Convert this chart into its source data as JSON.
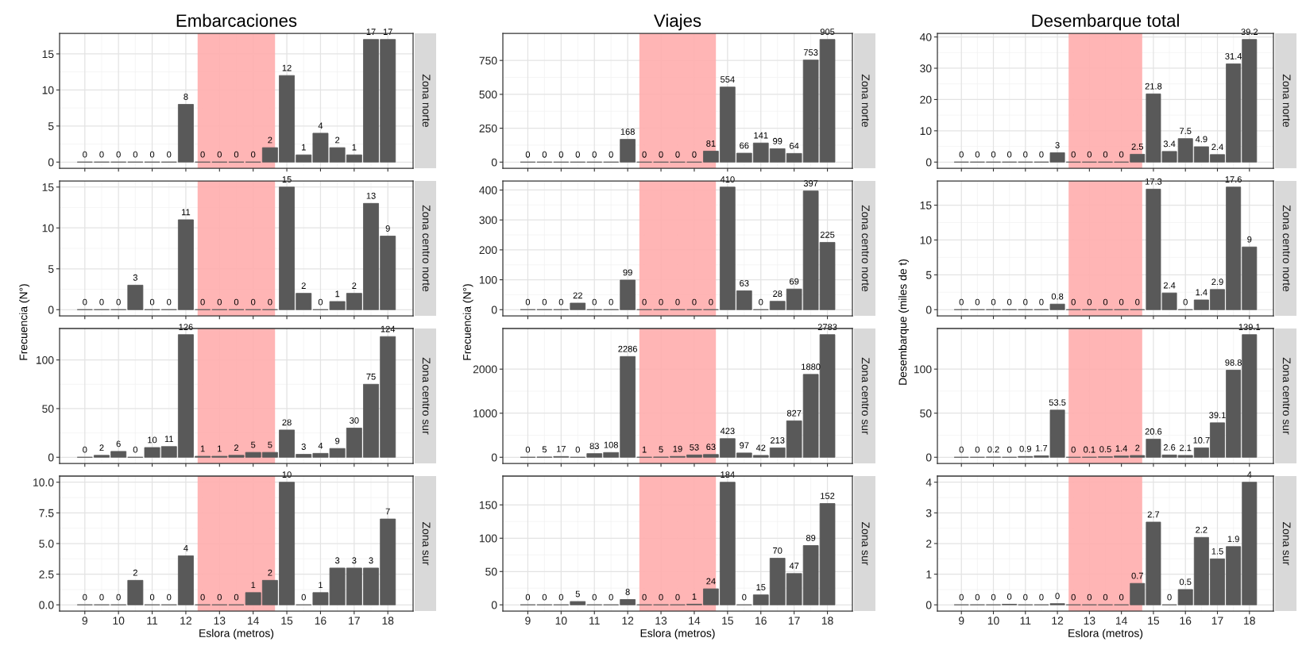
{
  "chart_data": [
    {
      "type": "bar",
      "title": "Embarcaciones",
      "y2label": "Zona norte",
      "x": [
        9,
        9.5,
        10,
        10.5,
        11,
        11.5,
        12,
        12.5,
        13,
        13.5,
        14,
        14.5,
        15,
        15.5,
        16,
        16.5,
        17,
        17.5,
        18
      ],
      "values": [
        0,
        0,
        0,
        0,
        0,
        0,
        8,
        0,
        0,
        0,
        0,
        2,
        12,
        1,
        4,
        2,
        1,
        17,
        17
      ],
      "color": "#595959",
      "data_labels": true,
      "xlim": [
        8.25,
        18.75
      ],
      "xticks": [
        9,
        10,
        11,
        12,
        13,
        14,
        15,
        16,
        17,
        18
      ],
      "ylim": [
        -0.85,
        17.85
      ],
      "yticks": [
        0,
        5,
        10,
        15
      ],
      "bands": [
        {
          "axis": "x",
          "from": 12.35,
          "to": 14.65,
          "color": "#ffadad"
        }
      ],
      "grid": true,
      "tick_labels": "y"
    },
    {
      "type": "bar",
      "y2label": "Zona centro norte",
      "ylabel": "Frecuencia (N°)",
      "x": [
        9,
        9.5,
        10,
        10.5,
        11,
        11.5,
        12,
        12.5,
        13,
        13.5,
        14,
        14.5,
        15,
        15.5,
        16,
        16.5,
        17,
        17.5,
        18
      ],
      "values": [
        0,
        0,
        0,
        3,
        0,
        0,
        11,
        0,
        0,
        0,
        0,
        0,
        15,
        2,
        0,
        1,
        2,
        13,
        9
      ],
      "color": "#595959",
      "data_labels": true,
      "xlim": [
        8.25,
        18.75
      ],
      "xticks": [
        9,
        10,
        11,
        12,
        13,
        14,
        15,
        16,
        17,
        18
      ],
      "ylim": [
        -0.75,
        15.75
      ],
      "yticks": [
        0,
        5,
        10,
        15
      ],
      "bands": [
        {
          "axis": "x",
          "from": 12.35,
          "to": 14.65,
          "color": "#ffadad"
        }
      ],
      "grid": true,
      "tick_labels": "y"
    },
    {
      "type": "bar",
      "y2label": "Zona centro sur",
      "x": [
        9,
        9.5,
        10,
        10.5,
        11,
        11.5,
        12,
        12.5,
        13,
        13.5,
        14,
        14.5,
        15,
        15.5,
        16,
        16.5,
        17,
        17.5,
        18
      ],
      "values": [
        0,
        2,
        6,
        0,
        10,
        11,
        126,
        1,
        1,
        2,
        5,
        5,
        28,
        3,
        4,
        9,
        30,
        75,
        124
      ],
      "color": "#595959",
      "data_labels": true,
      "xlim": [
        8.25,
        18.75
      ],
      "xticks": [
        9,
        10,
        11,
        12,
        13,
        14,
        15,
        16,
        17,
        18
      ],
      "ylim": [
        -6.3,
        132.3
      ],
      "yticks": [
        0,
        50,
        100
      ],
      "bands": [
        {
          "axis": "x",
          "from": 12.35,
          "to": 14.65,
          "color": "#ffadad"
        }
      ],
      "grid": true,
      "tick_labels": "y"
    },
    {
      "type": "bar",
      "y2label": "Zona sur",
      "xlabel": "Eslora (metros)",
      "x": [
        9,
        9.5,
        10,
        10.5,
        11,
        11.5,
        12,
        12.5,
        13,
        13.5,
        14,
        14.5,
        15,
        15.5,
        16,
        16.5,
        17,
        17.5,
        18
      ],
      "values": [
        0,
        0,
        0,
        2,
        0,
        0,
        4,
        0,
        0,
        0,
        1,
        2,
        10,
        0,
        1,
        3,
        3,
        3,
        7
      ],
      "color": "#595959",
      "data_labels": true,
      "xlim": [
        8.25,
        18.75
      ],
      "xticks": [
        9,
        10,
        11,
        12,
        13,
        14,
        15,
        16,
        17,
        18
      ],
      "ylim": [
        -0.5,
        10.5
      ],
      "yticks": [
        {
          "value": 0,
          "label": "0.0"
        },
        {
          "value": 2.5,
          "label": "2.5"
        },
        {
          "value": 5,
          "label": "5.0"
        },
        {
          "value": 7.5,
          "label": "7.5"
        },
        {
          "value": 10,
          "label": "10.0"
        }
      ],
      "bands": [
        {
          "axis": "x",
          "from": 12.35,
          "to": 14.65,
          "color": "#ffadad"
        }
      ],
      "grid": true
    },
    {
      "type": "bar",
      "title": "Viajes",
      "y2label": "Zona norte",
      "x": [
        9,
        9.5,
        10,
        10.5,
        11,
        11.5,
        12,
        12.5,
        13,
        13.5,
        14,
        14.5,
        15,
        15.5,
        16,
        16.5,
        17,
        17.5,
        18
      ],
      "values": [
        0,
        0,
        0,
        0,
        0,
        0,
        168,
        0,
        0,
        0,
        0,
        81,
        554,
        66,
        141,
        99,
        64,
        753,
        905
      ],
      "color": "#595959",
      "data_labels": true,
      "xlim": [
        8.25,
        18.75
      ],
      "xticks": [
        9,
        10,
        11,
        12,
        13,
        14,
        15,
        16,
        17,
        18
      ],
      "ylim": [
        -45,
        950
      ],
      "yticks": [
        0,
        250,
        500,
        750
      ],
      "bands": [
        {
          "axis": "x",
          "from": 12.35,
          "to": 14.65,
          "color": "#ffadad"
        }
      ],
      "grid": true,
      "tick_labels": "y"
    },
    {
      "type": "bar",
      "y2label": "Zona centro norte",
      "ylabel": "Frecuencia (N°)",
      "x": [
        9,
        9.5,
        10,
        10.5,
        11,
        11.5,
        12,
        12.5,
        13,
        13.5,
        14,
        14.5,
        15,
        15.5,
        16,
        16.5,
        17,
        17.5,
        18
      ],
      "values": [
        0,
        0,
        0,
        22,
        0,
        0,
        99,
        0,
        0,
        0,
        0,
        0,
        410,
        63,
        0,
        28,
        69,
        397,
        225
      ],
      "color": "#595959",
      "data_labels": true,
      "xlim": [
        8.25,
        18.75
      ],
      "xticks": [
        9,
        10,
        11,
        12,
        13,
        14,
        15,
        16,
        17,
        18
      ],
      "ylim": [
        -20.5,
        430.5
      ],
      "yticks": [
        0,
        100,
        200,
        300,
        400
      ],
      "bands": [
        {
          "axis": "x",
          "from": 12.35,
          "to": 14.65,
          "color": "#ffadad"
        }
      ],
      "grid": true,
      "tick_labels": "y"
    },
    {
      "type": "bar",
      "y2label": "Zona centro sur",
      "x": [
        9,
        9.5,
        10,
        10.5,
        11,
        11.5,
        12,
        12.5,
        13,
        13.5,
        14,
        14.5,
        15,
        15.5,
        16,
        16.5,
        17,
        17.5,
        18
      ],
      "values": [
        0,
        5,
        17,
        0,
        83,
        108,
        2286,
        1,
        5,
        19,
        53,
        63,
        423,
        97,
        42,
        213,
        827,
        1880,
        2783
      ],
      "color": "#595959",
      "data_labels": true,
      "xlim": [
        8.25,
        18.75
      ],
      "xticks": [
        9,
        10,
        11,
        12,
        13,
        14,
        15,
        16,
        17,
        18
      ],
      "ylim": [
        -139,
        2922
      ],
      "yticks": [
        0,
        1000,
        2000
      ],
      "bands": [
        {
          "axis": "x",
          "from": 12.35,
          "to": 14.65,
          "color": "#ffadad"
        }
      ],
      "grid": true,
      "tick_labels": "y"
    },
    {
      "type": "bar",
      "y2label": "Zona sur",
      "xlabel": "Eslora (metros)",
      "x": [
        9,
        9.5,
        10,
        10.5,
        11,
        11.5,
        12,
        12.5,
        13,
        13.5,
        14,
        14.5,
        15,
        15.5,
        16,
        16.5,
        17,
        17.5,
        18
      ],
      "values": [
        0,
        0,
        0,
        5,
        0,
        0,
        8,
        0,
        0,
        0,
        1,
        24,
        184,
        0,
        15,
        70,
        47,
        89,
        152
      ],
      "color": "#595959",
      "data_labels": true,
      "xlim": [
        8.25,
        18.75
      ],
      "xticks": [
        9,
        10,
        11,
        12,
        13,
        14,
        15,
        16,
        17,
        18
      ],
      "ylim": [
        -9.2,
        193.2
      ],
      "yticks": [
        0,
        50,
        100,
        150
      ],
      "bands": [
        {
          "axis": "x",
          "from": 12.35,
          "to": 14.65,
          "color": "#ffadad"
        }
      ],
      "grid": true
    },
    {
      "type": "bar",
      "title": "Desembarque total",
      "y2label": "Zona norte",
      "x": [
        9,
        9.5,
        10,
        10.5,
        11,
        11.5,
        12,
        12.5,
        13,
        13.5,
        14,
        14.5,
        15,
        15.5,
        16,
        16.5,
        17,
        17.5,
        18
      ],
      "values": [
        0,
        0,
        0,
        0,
        0,
        0,
        3,
        0,
        0,
        0,
        0,
        2.5,
        21.8,
        3.4,
        7.5,
        4.9,
        2.4,
        31.4,
        39.2
      ],
      "color": "#595959",
      "data_labels": true,
      "xlim": [
        8.25,
        18.75
      ],
      "xticks": [
        9,
        10,
        11,
        12,
        13,
        14,
        15,
        16,
        17,
        18
      ],
      "ylim": [
        -1.96,
        41.16
      ],
      "yticks": [
        0,
        10,
        20,
        30,
        40
      ],
      "bands": [
        {
          "axis": "x",
          "from": 12.35,
          "to": 14.65,
          "color": "#ffadad"
        }
      ],
      "grid": true,
      "tick_labels": "y"
    },
    {
      "type": "bar",
      "y2label": "Zona centro norte",
      "ylabel": "Desembarque (miles de t)",
      "x": [
        9,
        9.5,
        10,
        10.5,
        11,
        11.5,
        12,
        12.5,
        13,
        13.5,
        14,
        14.5,
        15,
        15.5,
        16,
        16.5,
        17,
        17.5,
        18
      ],
      "values": [
        0,
        0,
        0,
        0,
        0,
        0,
        0.8,
        0,
        0,
        0,
        0,
        0,
        17.3,
        2.4,
        0,
        1.4,
        2.9,
        17.6,
        9
      ],
      "color": "#595959",
      "data_labels": true,
      "xlim": [
        8.25,
        18.75
      ],
      "xticks": [
        9,
        10,
        11,
        12,
        13,
        14,
        15,
        16,
        17,
        18
      ],
      "ylim": [
        -0.88,
        18.48
      ],
      "yticks": [
        0,
        5,
        10,
        15
      ],
      "bands": [
        {
          "axis": "x",
          "from": 12.35,
          "to": 14.65,
          "color": "#ffadad"
        }
      ],
      "grid": true,
      "tick_labels": "y"
    },
    {
      "type": "bar",
      "y2label": "Zona centro sur",
      "x": [
        9,
        9.5,
        10,
        10.5,
        11,
        11.5,
        12,
        12.5,
        13,
        13.5,
        14,
        14.5,
        15,
        15.5,
        16,
        16.5,
        17,
        17.5,
        18
      ],
      "values": [
        0,
        0,
        0.2,
        0,
        0.9,
        1.7,
        53.5,
        0,
        0.1,
        0.5,
        1.4,
        2,
        20.6,
        2.6,
        2.1,
        10.7,
        39.1,
        98.8,
        139.1
      ],
      "color": "#595959",
      "data_labels": true,
      "xlim": [
        8.25,
        18.75
      ],
      "xticks": [
        9,
        10,
        11,
        12,
        13,
        14,
        15,
        16,
        17,
        18
      ],
      "ylim": [
        -6.96,
        146.06
      ],
      "yticks": [
        0,
        50,
        100
      ],
      "bands": [
        {
          "axis": "x",
          "from": 12.35,
          "to": 14.65,
          "color": "#ffadad"
        }
      ],
      "grid": true,
      "tick_labels": "y"
    },
    {
      "type": "bar",
      "y2label": "Zona sur",
      "xlabel": "Eslora (metros)",
      "x": [
        9,
        9.5,
        10,
        10.5,
        11,
        11.5,
        12,
        12.5,
        13,
        13.5,
        14,
        14.5,
        15,
        15.5,
        16,
        16.5,
        17,
        17.5,
        18
      ],
      "values": [
        0,
        0,
        0,
        0.02,
        0,
        0,
        0.04,
        0,
        0,
        0,
        0,
        0.7,
        2.7,
        0,
        0.5,
        2.2,
        1.5,
        1.9,
        4
      ],
      "value_labels": [
        "0",
        "0",
        "0",
        "0",
        "0",
        "0",
        "0",
        "0",
        "0",
        "0",
        "0",
        "0.7",
        "2.7",
        "0",
        "0.5",
        "2.2",
        "1.5",
        "1.9",
        "4"
      ],
      "color": "#595959",
      "xlim": [
        8.25,
        18.75
      ],
      "xticks": [
        9,
        10,
        11,
        12,
        13,
        14,
        15,
        16,
        17,
        18
      ],
      "ylim": [
        -0.2,
        4.2
      ],
      "yticks": [
        0,
        1,
        2,
        3,
        4
      ],
      "bands": [
        {
          "axis": "x",
          "from": 12.35,
          "to": 14.65,
          "color": "#ffadad"
        }
      ],
      "grid": true
    }
  ]
}
